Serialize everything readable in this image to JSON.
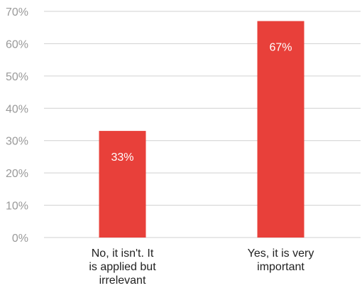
{
  "chart_data": {
    "type": "bar",
    "title": "",
    "xlabel": "",
    "ylabel": "",
    "ylim": [
      0,
      70
    ],
    "y_ticks": [
      0,
      10,
      20,
      30,
      40,
      50,
      60,
      70
    ],
    "y_tick_labels": [
      "0%",
      "10%",
      "20%",
      "30%",
      "40%",
      "50%",
      "60%",
      "70%"
    ],
    "categories": [
      [
        "No, it isn't. It",
        "is applied but",
        "irrelevant"
      ],
      [
        "Yes, it is very",
        "important"
      ]
    ],
    "values": [
      33,
      67
    ],
    "data_labels": [
      "33%",
      "67%"
    ],
    "grid": true,
    "legend": "none",
    "bar_color": "#e8403a"
  }
}
